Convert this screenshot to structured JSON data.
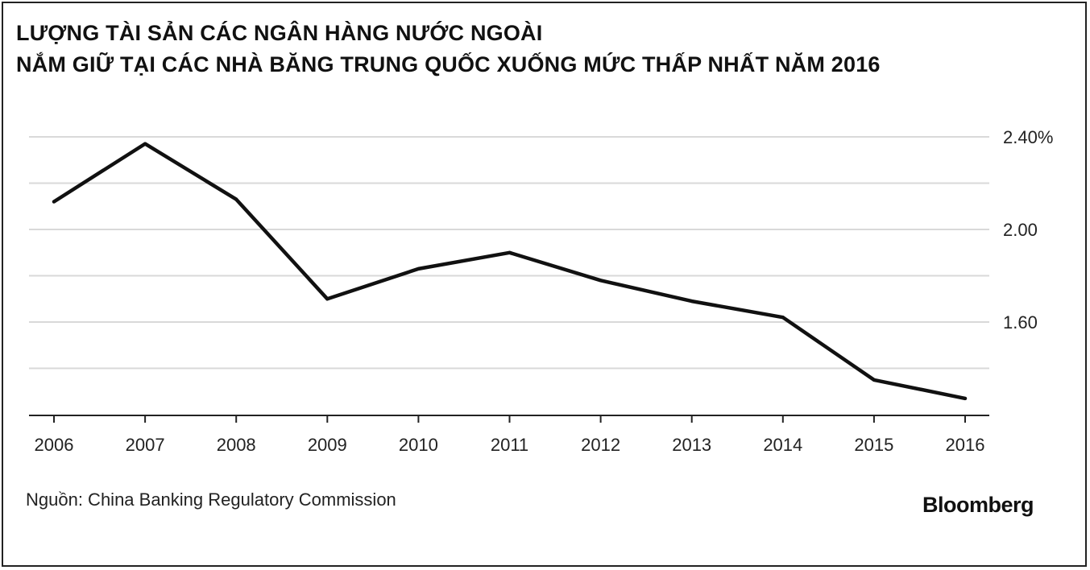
{
  "chart_data": {
    "type": "line",
    "title_line1": "LƯỢNG TÀI SẢN CÁC NGÂN HÀNG NƯỚC NGOÀI",
    "title_line2": "NẮM GIỮ TẠI CÁC NHÀ BĂNG TRUNG QUỐC XUỐNG MỨC THẤP NHẤT NĂM 2016",
    "x": [
      "2006",
      "2007",
      "2008",
      "2009",
      "2010",
      "2011",
      "2012",
      "2013",
      "2014",
      "2015",
      "2016"
    ],
    "series": [
      {
        "values": [
          2.12,
          2.37,
          2.13,
          1.7,
          1.83,
          1.9,
          1.78,
          1.69,
          1.62,
          1.35,
          1.27
        ]
      }
    ],
    "yticks": [
      1.6,
      2.0,
      2.4
    ],
    "ytick_labels": [
      "1.60",
      "2.00",
      "2.40%"
    ],
    "ygrid": [
      1.4,
      1.6,
      1.8,
      2.0,
      2.2,
      2.4
    ],
    "ylim": [
      1.2,
      2.4
    ],
    "grid": true,
    "line_color": "#111111",
    "grid_color": "#d9d9d9"
  },
  "source_label": "Nguồn:  China Banking Regulatory Commission",
  "brand": "Bloomberg"
}
